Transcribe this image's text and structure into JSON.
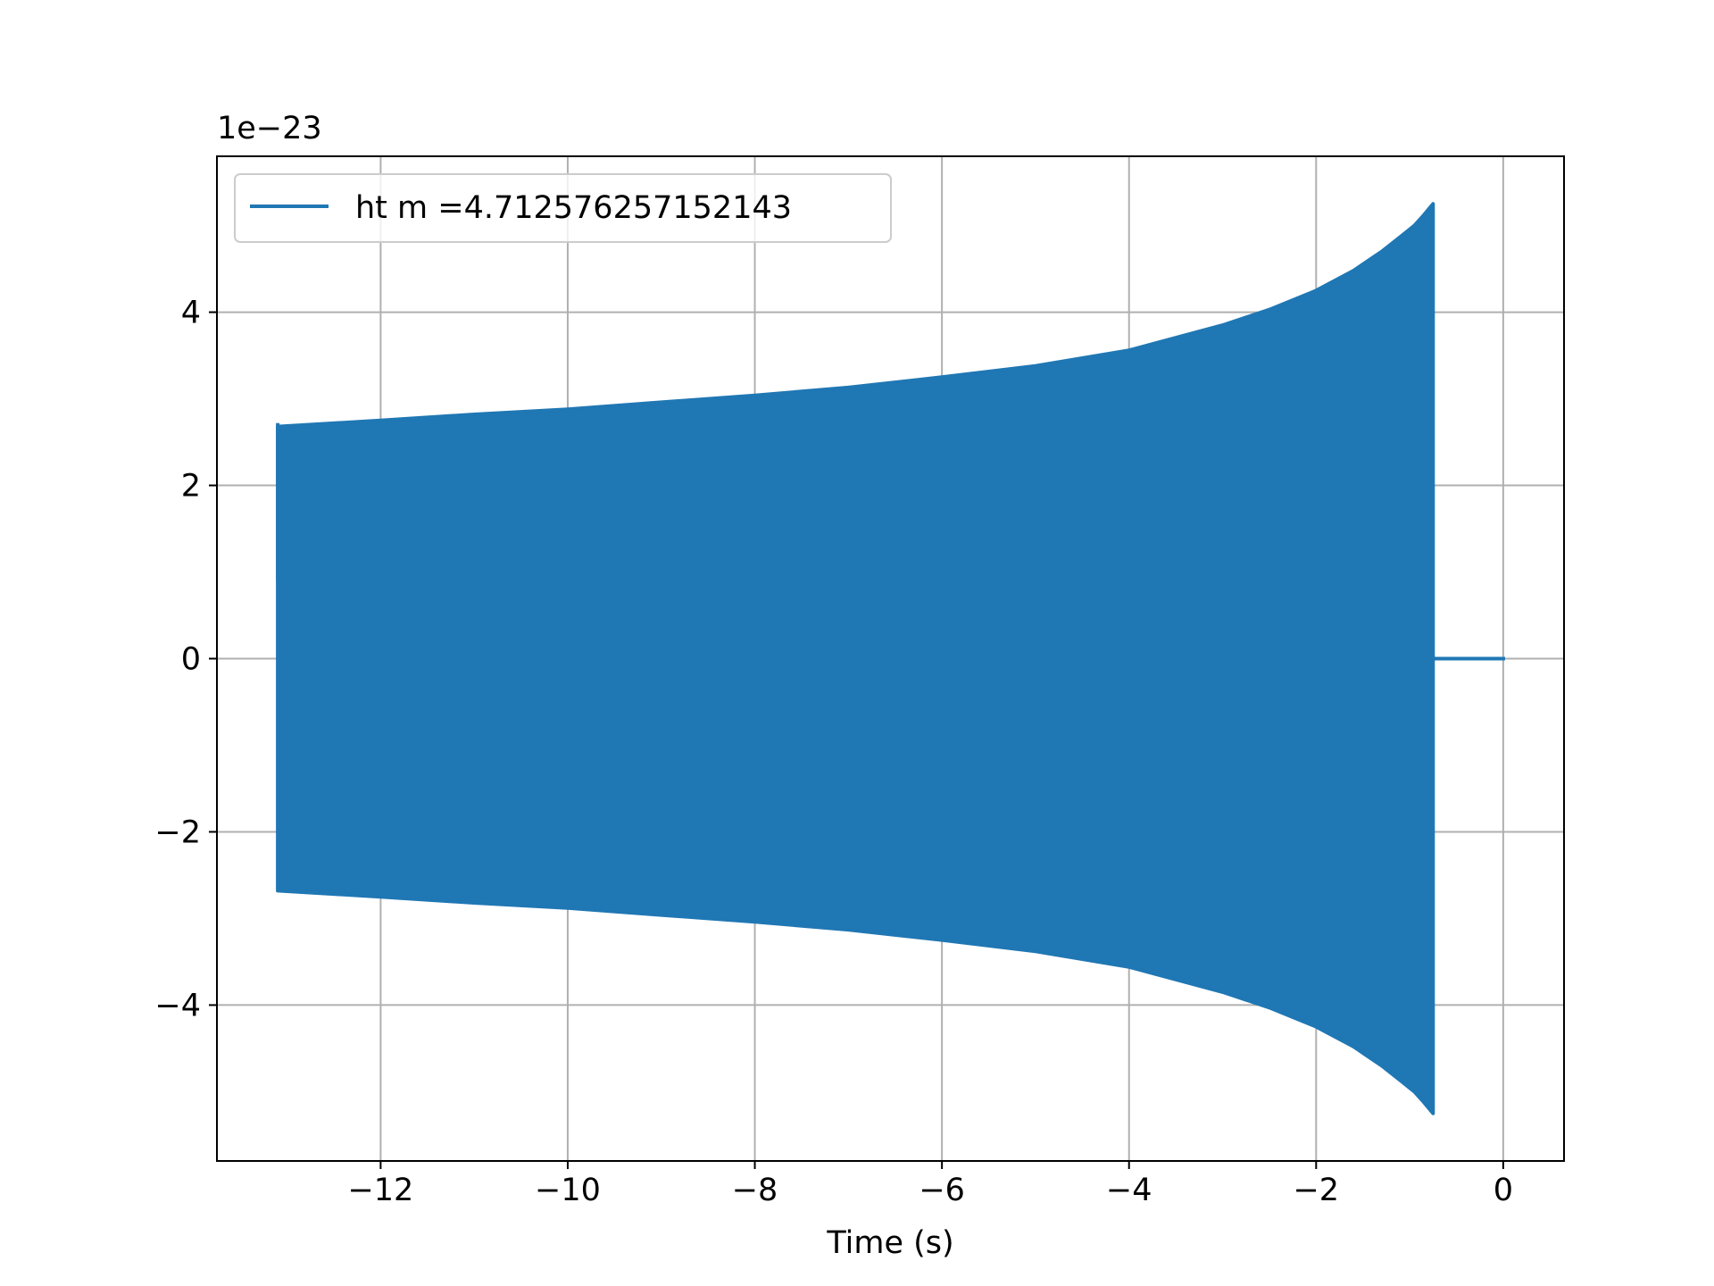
{
  "chart_data": {
    "type": "line",
    "title": "",
    "xlabel": "Time (s)",
    "ylabel": "",
    "y_offset_label": "1e−23",
    "xlim": [
      -13.75,
      0.65
    ],
    "ylim": [
      -5.8,
      5.8
    ],
    "xticks": [
      -12,
      -10,
      -8,
      -6,
      -4,
      -2,
      0
    ],
    "xtick_labels": [
      "−12",
      "−10",
      "−8",
      "−6",
      "−4",
      "−2",
      "0"
    ],
    "yticks": [
      -4,
      -2,
      0,
      2,
      4
    ],
    "ytick_labels": [
      "−4",
      "−2",
      "0",
      "2",
      "4"
    ],
    "grid": true,
    "legend_position": "top-left",
    "series": [
      {
        "name": "ht m =4.712576257152143",
        "color": "#1f77b4",
        "envelope": {
          "t": [
            -13.1,
            -12,
            -11,
            -10,
            -9,
            -8,
            -7,
            -6,
            -5,
            -4,
            -3,
            -2.5,
            -2,
            -1.6,
            -1.3,
            -1.1,
            -0.95,
            -0.85,
            -0.75
          ],
          "amplitude": [
            2.68,
            2.75,
            2.82,
            2.88,
            2.96,
            3.04,
            3.13,
            3.25,
            3.38,
            3.56,
            3.85,
            4.03,
            4.25,
            4.48,
            4.7,
            4.87,
            5.0,
            5.12,
            5.25
          ]
        },
        "start_value": 0.9,
        "start_peak": 2.72,
        "tail": {
          "t": [
            -0.75,
            0.02
          ],
          "value": 0
        }
      }
    ]
  }
}
